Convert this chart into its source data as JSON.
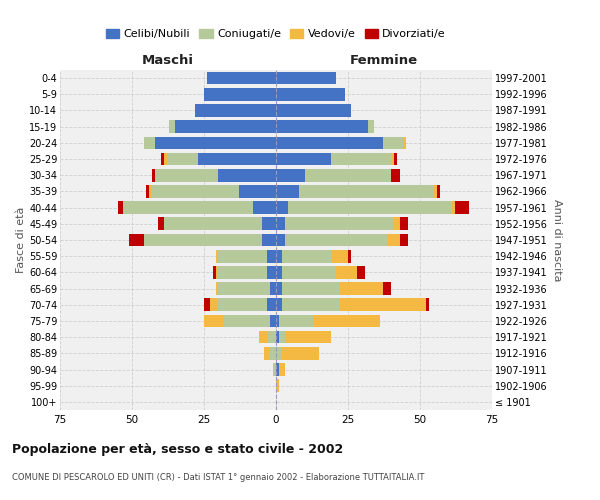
{
  "age_groups": [
    "100+",
    "95-99",
    "90-94",
    "85-89",
    "80-84",
    "75-79",
    "70-74",
    "65-69",
    "60-64",
    "55-59",
    "50-54",
    "45-49",
    "40-44",
    "35-39",
    "30-34",
    "25-29",
    "20-24",
    "15-19",
    "10-14",
    "5-9",
    "0-4"
  ],
  "birth_years": [
    "≤ 1901",
    "1902-1906",
    "1907-1911",
    "1912-1916",
    "1917-1921",
    "1922-1926",
    "1927-1931",
    "1932-1936",
    "1937-1941",
    "1942-1946",
    "1947-1951",
    "1952-1956",
    "1957-1961",
    "1962-1966",
    "1967-1971",
    "1972-1976",
    "1977-1981",
    "1982-1986",
    "1987-1991",
    "1992-1996",
    "1997-2001"
  ],
  "maschi_celibi": [
    0,
    0,
    0,
    0,
    0,
    2,
    3,
    2,
    3,
    3,
    5,
    5,
    8,
    13,
    20,
    27,
    42,
    35,
    28,
    25,
    24
  ],
  "maschi_coniugati": [
    0,
    0,
    1,
    2,
    3,
    16,
    17,
    18,
    17,
    17,
    41,
    34,
    45,
    30,
    22,
    11,
    4,
    2,
    0,
    0,
    0
  ],
  "maschi_vedovi": [
    0,
    0,
    0,
    2,
    3,
    7,
    3,
    1,
    1,
    1,
    0,
    0,
    0,
    1,
    0,
    1,
    0,
    0,
    0,
    0,
    0
  ],
  "maschi_divorziati": [
    0,
    0,
    0,
    0,
    0,
    0,
    2,
    0,
    1,
    0,
    5,
    2,
    2,
    1,
    1,
    1,
    0,
    0,
    0,
    0,
    0
  ],
  "femmine_celibi": [
    0,
    0,
    1,
    0,
    1,
    1,
    2,
    2,
    2,
    2,
    3,
    3,
    4,
    8,
    10,
    19,
    37,
    32,
    26,
    24,
    21
  ],
  "femmine_coniugati": [
    0,
    0,
    0,
    2,
    2,
    12,
    20,
    20,
    19,
    17,
    36,
    38,
    57,
    47,
    30,
    21,
    7,
    2,
    0,
    0,
    0
  ],
  "femmine_vedovi": [
    0,
    1,
    2,
    13,
    16,
    23,
    30,
    15,
    7,
    6,
    4,
    2,
    1,
    1,
    0,
    1,
    1,
    0,
    0,
    0,
    0
  ],
  "femmine_divorziati": [
    0,
    0,
    0,
    0,
    0,
    0,
    1,
    3,
    3,
    1,
    3,
    3,
    5,
    1,
    3,
    1,
    0,
    0,
    0,
    0,
    0
  ],
  "colors": {
    "celibi": "#4472c4",
    "coniugati": "#b5c99a",
    "vedovi": "#f4b942",
    "divorziati": "#c00000"
  },
  "title": "Popolazione per età, sesso e stato civile - 2002",
  "subtitle": "COMUNE DI PESCAROLO ED UNITI (CR) - Dati ISTAT 1° gennaio 2002 - Elaborazione TUTTAITALIA.IT",
  "xlabel_left": "Maschi",
  "xlabel_right": "Femmine",
  "ylabel_left": "Fasce di età",
  "ylabel_right": "Anni di nascita",
  "xlim": 75,
  "background_color": "#ffffff",
  "grid_color": "#cccccc",
  "legend_labels": [
    "Celibi/Nubili",
    "Coniugati/e",
    "Vedovi/e",
    "Divorziati/e"
  ]
}
